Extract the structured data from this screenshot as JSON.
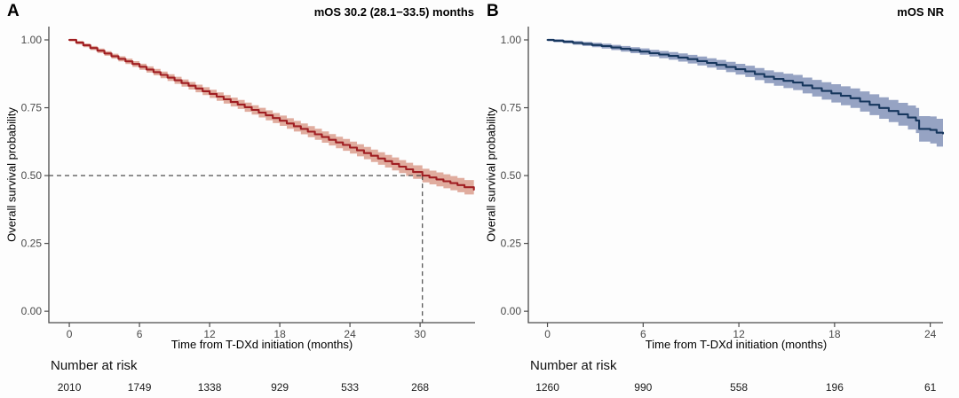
{
  "page": {
    "background": "#fdfdfd"
  },
  "chart_data": [
    {
      "panel_label": "A",
      "type": "line",
      "subtype": "kaplan-meier-step-curve-with-confidence-band",
      "title": "mOS 30.2 (28.1−33.5) months",
      "xlabel": "Time from T-DXd initiation (months)",
      "ylabel": "Overall survival probability",
      "x_ticks": [
        0,
        6,
        12,
        18,
        24,
        30
      ],
      "y_ticks": [
        1.0,
        0.75,
        0.5,
        0.25,
        0.0
      ],
      "y_tick_labels": [
        "1.00",
        "0.75",
        "0.50",
        "0.25",
        "0.00"
      ],
      "xlim": [
        -1.75,
        34.7
      ],
      "ylim": [
        -0.042,
        1.049
      ],
      "grid": false,
      "line_color": "#a01e22",
      "band_color": "#e0ac9e",
      "median_annotation": {
        "time": 30.2,
        "prob": 0.5
      },
      "series": [
        {
          "name": "T-DXd overall survival",
          "points": [
            [
              0,
              1.0
            ],
            [
              0.6,
              0.99
            ],
            [
              1.2,
              0.98
            ],
            [
              1.8,
              0.97
            ],
            [
              2.4,
              0.96
            ],
            [
              3.0,
              0.95
            ],
            [
              3.6,
              0.94
            ],
            [
              4.2,
              0.93
            ],
            [
              4.8,
              0.921
            ],
            [
              5.4,
              0.911
            ],
            [
              6.0,
              0.901
            ],
            [
              6.6,
              0.891
            ],
            [
              7.2,
              0.881
            ],
            [
              7.8,
              0.871
            ],
            [
              8.4,
              0.861
            ],
            [
              9.0,
              0.851
            ],
            [
              9.6,
              0.841
            ],
            [
              10.2,
              0.831
            ],
            [
              10.8,
              0.821
            ],
            [
              11.4,
              0.811
            ],
            [
              12.0,
              0.801
            ],
            [
              12.6,
              0.791
            ],
            [
              13.2,
              0.781
            ],
            [
              13.8,
              0.771
            ],
            [
              14.4,
              0.762
            ],
            [
              15.0,
              0.752
            ],
            [
              15.6,
              0.742
            ],
            [
              16.2,
              0.732
            ],
            [
              16.8,
              0.722
            ],
            [
              17.4,
              0.712
            ],
            [
              18.0,
              0.702
            ],
            [
              18.6,
              0.692
            ],
            [
              19.2,
              0.682
            ],
            [
              19.8,
              0.672
            ],
            [
              20.4,
              0.662
            ],
            [
              21.0,
              0.652
            ],
            [
              21.6,
              0.642
            ],
            [
              22.2,
              0.632
            ],
            [
              22.8,
              0.622
            ],
            [
              23.4,
              0.613
            ],
            [
              24.0,
              0.603
            ],
            [
              24.6,
              0.593
            ],
            [
              25.2,
              0.583
            ],
            [
              25.8,
              0.573
            ],
            [
              26.4,
              0.563
            ],
            [
              27.0,
              0.553
            ],
            [
              27.6,
              0.543
            ],
            [
              28.2,
              0.533
            ],
            [
              28.8,
              0.523
            ],
            [
              29.4,
              0.513
            ],
            [
              30.2,
              0.5
            ],
            [
              30.8,
              0.493
            ],
            [
              31.4,
              0.486
            ],
            [
              32.0,
              0.479
            ],
            [
              32.6,
              0.472
            ],
            [
              33.2,
              0.465
            ],
            [
              33.8,
              0.457
            ],
            [
              34.6,
              0.448
            ]
          ],
          "band_half_widths": [
            [
              0,
              0.006
            ],
            [
              6,
              0.011
            ],
            [
              12,
              0.015
            ],
            [
              18,
              0.019
            ],
            [
              24,
              0.022
            ],
            [
              30,
              0.025
            ],
            [
              34.6,
              0.027
            ]
          ]
        }
      ],
      "risk_table": {
        "label": "Number at risk",
        "times": [
          0,
          6,
          12,
          18,
          24,
          30
        ],
        "values": [
          "2010",
          "1749",
          "1338",
          "929",
          "533",
          "268"
        ]
      }
    },
    {
      "panel_label": "B",
      "type": "line",
      "subtype": "kaplan-meier-step-curve-with-confidence-band",
      "title": "mOS NR",
      "xlabel": "Time from T-DXd initiation (months)",
      "ylabel": "Overall survival probability",
      "x_ticks": [
        0,
        6,
        12,
        18,
        24
      ],
      "y_ticks": [
        1.0,
        0.75,
        0.5,
        0.25,
        0.0
      ],
      "y_tick_labels": [
        "1.00",
        "0.75",
        "0.50",
        "0.25",
        "0.00"
      ],
      "xlim": [
        -1.2,
        24.8
      ],
      "ylim": [
        -0.042,
        1.049
      ],
      "grid": false,
      "line_color": "#17375e",
      "band_color": "#96a3c3",
      "median_annotation": null,
      "series": [
        {
          "name": "T-DXd overall survival",
          "points": [
            [
              0,
              1.0
            ],
            [
              0.4,
              0.997
            ],
            [
              1.0,
              0.993
            ],
            [
              1.6,
              0.989
            ],
            [
              2.2,
              0.985
            ],
            [
              2.8,
              0.981
            ],
            [
              3.4,
              0.977
            ],
            [
              4.0,
              0.972
            ],
            [
              4.6,
              0.967
            ],
            [
              5.2,
              0.962
            ],
            [
              5.8,
              0.957
            ],
            [
              6.4,
              0.951
            ],
            [
              7.0,
              0.946
            ],
            [
              7.6,
              0.941
            ],
            [
              8.2,
              0.935
            ],
            [
              8.8,
              0.929
            ],
            [
              9.4,
              0.922
            ],
            [
              10.0,
              0.915
            ],
            [
              10.6,
              0.908
            ],
            [
              11.2,
              0.9
            ],
            [
              11.8,
              0.892
            ],
            [
              12.4,
              0.884
            ],
            [
              13.0,
              0.874
            ],
            [
              13.6,
              0.864
            ],
            [
              14.2,
              0.856
            ],
            [
              14.8,
              0.849
            ],
            [
              15.4,
              0.843
            ],
            [
              16.0,
              0.832
            ],
            [
              16.6,
              0.822
            ],
            [
              17.2,
              0.812
            ],
            [
              17.8,
              0.803
            ],
            [
              18.4,
              0.794
            ],
            [
              19.0,
              0.785
            ],
            [
              19.6,
              0.773
            ],
            [
              20.2,
              0.761
            ],
            [
              20.8,
              0.749
            ],
            [
              21.4,
              0.738
            ],
            [
              22.0,
              0.726
            ],
            [
              22.6,
              0.714
            ],
            [
              23.1,
              0.703
            ],
            [
              23.3,
              0.672
            ],
            [
              24.0,
              0.668
            ],
            [
              24.4,
              0.658
            ],
            [
              24.8,
              0.655
            ]
          ],
          "band_half_widths": [
            [
              0,
              0.005
            ],
            [
              6,
              0.012
            ],
            [
              12,
              0.02
            ],
            [
              18,
              0.034
            ],
            [
              22,
              0.042
            ],
            [
              24.8,
              0.053
            ]
          ]
        }
      ],
      "risk_table": {
        "label": "Number at risk",
        "times": [
          0,
          6,
          12,
          18,
          24
        ],
        "values": [
          "1260",
          "990",
          "558",
          "196",
          "61"
        ]
      }
    }
  ]
}
